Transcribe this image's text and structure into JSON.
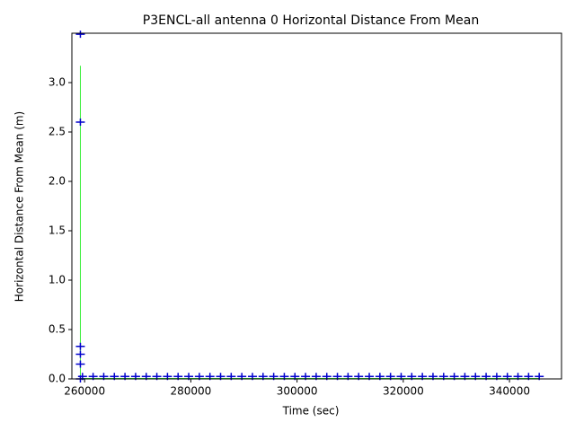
{
  "chart_data": {
    "type": "scatter",
    "title": "P3ENCL-all antenna 0 Horizontal Distance From Mean",
    "xlabel": "Time (sec)",
    "ylabel": "Horizontal Distance From Mean (m)",
    "xlim": [
      257600,
      349800
    ],
    "ylim": [
      0,
      3.5
    ],
    "xticks": [
      260000,
      280000,
      300000,
      320000,
      340000
    ],
    "yticks": [
      {
        "value": 0,
        "label": "0.0"
      },
      {
        "value": 0.5,
        "label": "0.5"
      },
      {
        "value": 1,
        "label": "1.0"
      },
      {
        "value": 1.5,
        "label": "1.5"
      },
      {
        "value": 2,
        "label": "2.0"
      },
      {
        "value": 2.5,
        "label": "2.5"
      },
      {
        "value": 3,
        "label": "3.0"
      }
    ],
    "series": [
      {
        "kind": "line",
        "color": "#33ee33",
        "x": [
          259200,
          259200,
          259300,
          345600
        ],
        "values": [
          3.17,
          0,
          0.005,
          0.005
        ]
      },
      {
        "kind": "scatter",
        "color": "#0000cc",
        "x": [
          259200,
          259200,
          259200,
          259200,
          259200,
          259200,
          259600,
          261600,
          263600,
          265600,
          267600,
          269600,
          271600,
          273600,
          275600,
          277600,
          279600,
          281600,
          283600,
          285600,
          287600,
          289600,
          291600,
          293600,
          295600,
          297600,
          299600,
          301600,
          303600,
          305600,
          307600,
          309600,
          311600,
          313600,
          315600,
          317600,
          319600,
          321600,
          323600,
          325600,
          327600,
          329600,
          331600,
          333600,
          335600,
          337600,
          339600,
          341600,
          343600,
          345600
        ],
        "values": [
          3.49,
          2.6,
          0.33,
          0.25,
          0.15,
          0,
          0.025,
          0.025,
          0.025,
          0.025,
          0.025,
          0.025,
          0.025,
          0.025,
          0.025,
          0.025,
          0.025,
          0.025,
          0.025,
          0.025,
          0.025,
          0.025,
          0.025,
          0.025,
          0.025,
          0.025,
          0.025,
          0.025,
          0.025,
          0.025,
          0.025,
          0.025,
          0.025,
          0.025,
          0.025,
          0.025,
          0.025,
          0.025,
          0.025,
          0.025,
          0.025,
          0.025,
          0.025,
          0.025,
          0.025,
          0.025,
          0.025,
          0.025,
          0.025,
          0.025
        ]
      }
    ]
  }
}
